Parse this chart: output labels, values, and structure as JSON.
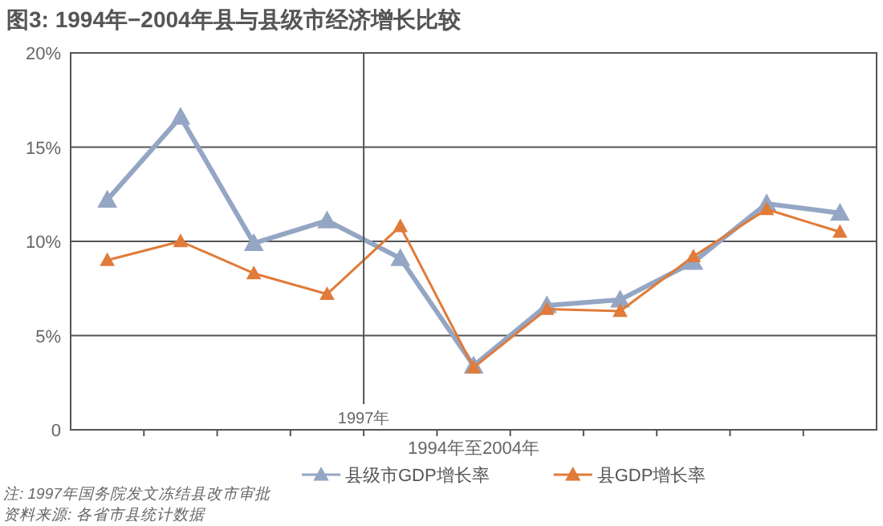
{
  "chart_data": {
    "type": "line",
    "title": "图3: 1994年−2004年县与县级市经济增长比较",
    "xlabel": "1994年至2004年",
    "categories": [
      null,
      null,
      null,
      null,
      null,
      null,
      null,
      null,
      null,
      null,
      null
    ],
    "series": [
      {
        "name": "县级市GDP增长率",
        "color": "#94a6c4",
        "values": [
          12.2,
          16.6,
          9.9,
          11.1,
          9.1,
          3.4,
          6.6,
          6.9,
          8.9,
          12.0,
          11.5
        ]
      },
      {
        "name": "县GDP增长率",
        "color": "#e07b39",
        "values": [
          9.0,
          10.0,
          8.3,
          7.2,
          10.8,
          3.3,
          6.4,
          6.3,
          9.2,
          11.7,
          10.5
        ]
      }
    ],
    "ylim": [
      0,
      20
    ],
    "yticks": [
      0,
      {
        "value": 5,
        "label": "5%"
      },
      {
        "value": 10,
        "label": "10%"
      },
      {
        "value": 15,
        "label": "15%"
      },
      {
        "value": 20,
        "label": "20%"
      }
    ],
    "grid": "y",
    "legend": "bottom",
    "marker": "triangle",
    "line_style": "solid",
    "annotations": [
      "1997年",
      "注: 1997年国务院发文冻结县改市审批",
      "资料来源: 各省市县统计数据"
    ]
  }
}
